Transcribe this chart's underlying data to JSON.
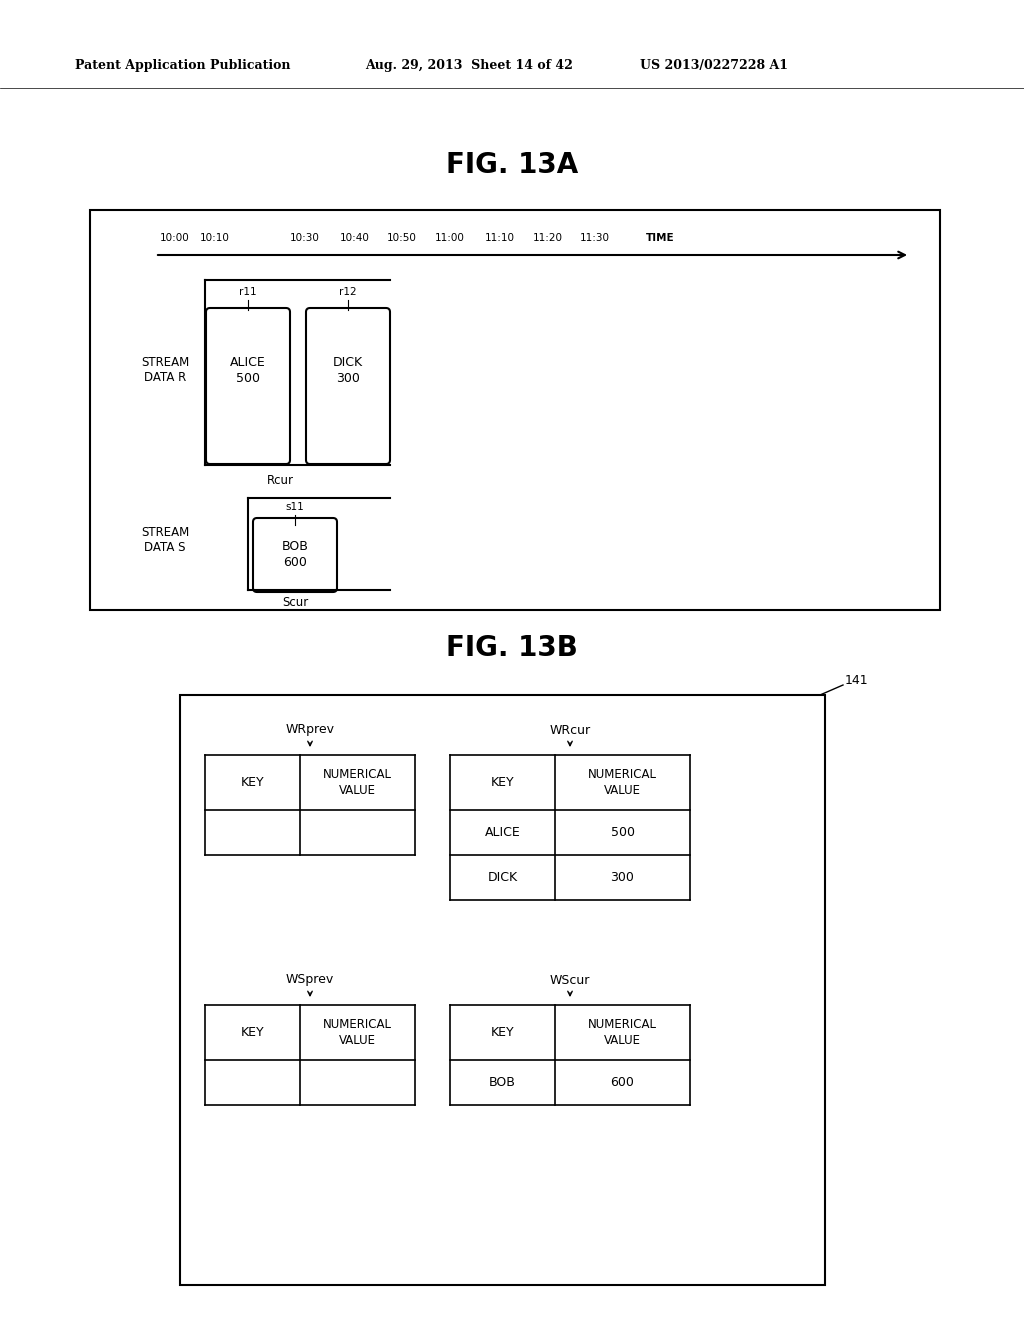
{
  "header_left": "Patent Application Publication",
  "header_mid": "Aug. 29, 2013  Sheet 14 of 42",
  "header_right": "US 2013/0227228 A1",
  "fig13a_title": "FIG. 13A",
  "fig13b_title": "FIG. 13B",
  "time_labels": [
    "10:00",
    "10:10",
    "10:30",
    "10:40",
    "10:50",
    "11:00",
    "11:10",
    "11:20",
    "11:30",
    "TIME"
  ],
  "stream_r_label": "STREAM\nDATA R",
  "stream_s_label": "STREAM\nDATA S",
  "r11_label": "r11",
  "r12_label": "r12",
  "alice_val_line1": "ALICE",
  "alice_val_line2": "500",
  "dick_val_line1": "DICK",
  "dick_val_line2": "300",
  "rcur_label": "Rcur",
  "s11_label": "s11",
  "bob_val_line1": "BOB",
  "bob_val_line2": "600",
  "scur_label": "Scur",
  "label_141": "141",
  "wrprev_label": "WRprev",
  "wrcur_label": "WRcur",
  "wsprev_label": "WSprev",
  "wscur_label": "WScur",
  "key_label": "KEY",
  "num_val_label": "NUMERICAL\nVALUE",
  "alice_key": "ALICE",
  "alice_num": "500",
  "dick_key": "DICK",
  "dick_num": "300",
  "bob_key": "BOB",
  "bob_num": "600",
  "bg_color": "#ffffff",
  "text_color": "#000000"
}
